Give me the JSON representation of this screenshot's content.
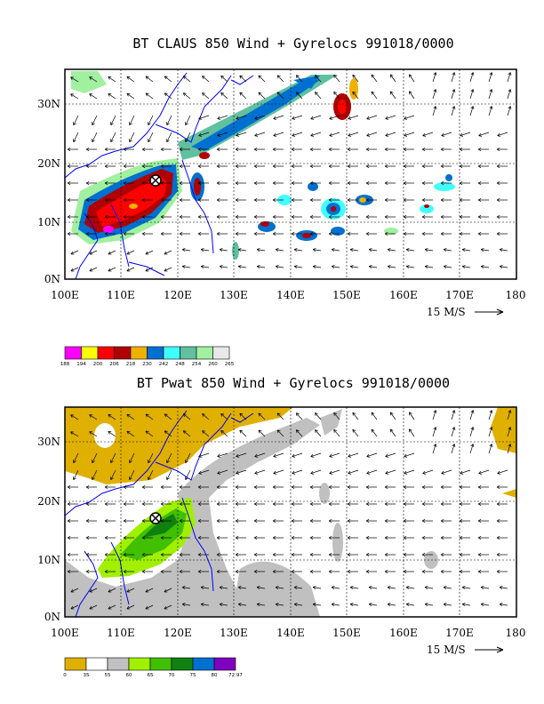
{
  "figure": {
    "top": {
      "title": "BT CLAUS 850 Wind + Gyrelocs 991018/0000",
      "lon_labels": [
        "100E",
        "110E",
        "120E",
        "130E",
        "140E",
        "150E",
        "160E",
        "170E",
        "180"
      ],
      "lat_labels": [
        "0N",
        "10N",
        "20N",
        "30N"
      ],
      "wind_ref_label": "15 M/S",
      "storm_symbol": "tc-center-icon",
      "legend": {
        "values": [
          "188",
          "194",
          "200",
          "206",
          "218",
          "230",
          "242",
          "248",
          "254",
          "260",
          "265"
        ],
        "colors": [
          "#ff00ff",
          "#ffff00",
          "#ff0000",
          "#b00000",
          "#f0b000",
          "#0070d0",
          "#40ffff",
          "#60c0a0",
          "#a0f0a0",
          "#e8e8e8"
        ]
      }
    },
    "bottom": {
      "title": "BT Pwat 850 Wind + Gyrelocs 991018/0000",
      "lon_labels": [
        "100E",
        "110E",
        "120E",
        "130E",
        "140E",
        "150E",
        "160E",
        "170E",
        "180"
      ],
      "lat_labels": [
        "0N",
        "10N",
        "20N",
        "30N"
      ],
      "wind_ref_label": "15 M/S",
      "storm_symbol": "tc-center-icon",
      "legend": {
        "values": [
          "0",
          "35",
          "55",
          "60",
          "65",
          "70",
          "75",
          "80",
          "72.97"
        ],
        "colors": [
          "#e0b000",
          "#ffffff",
          "#c0c0c0",
          "#a0f000",
          "#40c000",
          "#108010",
          "#0070d0",
          "#8000c0"
        ]
      }
    }
  }
}
